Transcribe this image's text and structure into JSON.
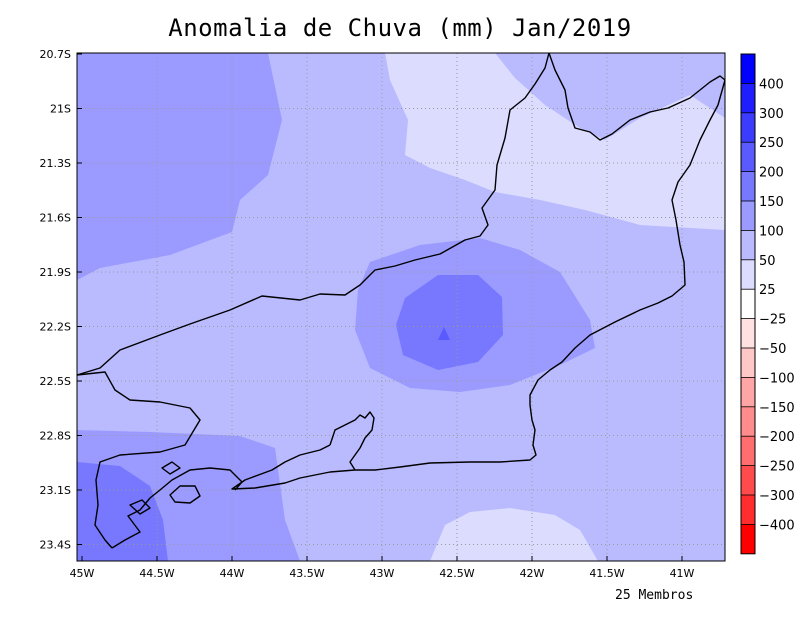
{
  "title": "Anomalia de Chuva (mm) Jan/2019",
  "footer": "25 Membros",
  "axes": {
    "x_ticks": [
      "45W",
      "44.5W",
      "44W",
      "43.5W",
      "43W",
      "42.5W",
      "42W",
      "41.5W",
      "41W"
    ],
    "y_ticks": [
      "20.7S",
      "21S",
      "21.3S",
      "21.6S",
      "21.9S",
      "22.2S",
      "22.5S",
      "22.8S",
      "23.1S",
      "23.4S"
    ]
  },
  "colorbar": {
    "labels": [
      "400",
      "300",
      "250",
      "200",
      "150",
      "100",
      "50",
      "25",
      "−25",
      "−50",
      "−100",
      "−150",
      "−200",
      "−250",
      "−300",
      "−400"
    ],
    "colors": [
      "#0000ff",
      "#1e1eff",
      "#3c3cff",
      "#5a5aff",
      "#7878ff",
      "#9b9bff",
      "#babaff",
      "#dcdcff",
      "#ffffff",
      "#ffe1e1",
      "#ffc8c8",
      "#ffa5a5",
      "#ff8c8c",
      "#ff6e6e",
      "#ff4b4b",
      "#ff2d2d",
      "#ff0000"
    ]
  },
  "map_colors": {
    "light": "#dcdcff",
    "base": "#babaff",
    "medium": "#9b9bff",
    "strong": "#7878ff",
    "peak": "#5a5aff",
    "coast": "#000000",
    "grid": "#999999"
  }
}
